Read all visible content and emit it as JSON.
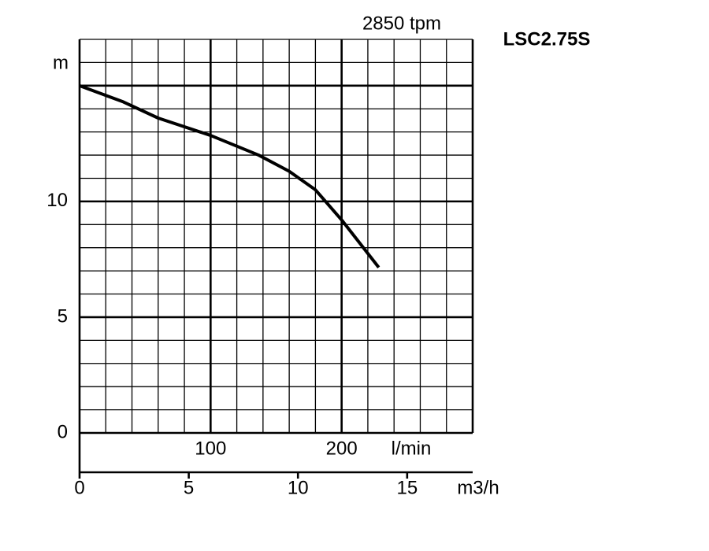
{
  "chart_data": {
    "type": "line",
    "title": "LSC2.75S",
    "subtitle": "2850 tpm",
    "ylabel": "m",
    "xlabel": "m3/h",
    "x2label": "l/min",
    "xlim": [
      0,
      18
    ],
    "xticks": [
      0,
      5,
      10,
      15
    ],
    "x2lim": [
      0,
      300
    ],
    "x2ticks": [
      100,
      200
    ],
    "x2grid": [
      0,
      20,
      40,
      60,
      80,
      100,
      120,
      140,
      160,
      180,
      200,
      220,
      240,
      260,
      280,
      300
    ],
    "ylim": [
      0,
      17
    ],
    "yticks": [
      0,
      5,
      10
    ],
    "ygrid": [
      0,
      1,
      2,
      3,
      4,
      5,
      6,
      7,
      8,
      9,
      10,
      11,
      12,
      13,
      14,
      15,
      16,
      17
    ],
    "y_major_grid": [
      0,
      5,
      10,
      15
    ],
    "grid": true,
    "series": [
      {
        "color": "#000000",
        "x": [
          0,
          2,
          3.6,
          6,
          8.2,
          9.6,
          10.8,
          12,
          13.7
        ],
        "values": [
          15,
          14.3,
          13.6,
          12.85,
          12,
          11.3,
          10.5,
          9.2,
          7.15
        ]
      }
    ]
  }
}
